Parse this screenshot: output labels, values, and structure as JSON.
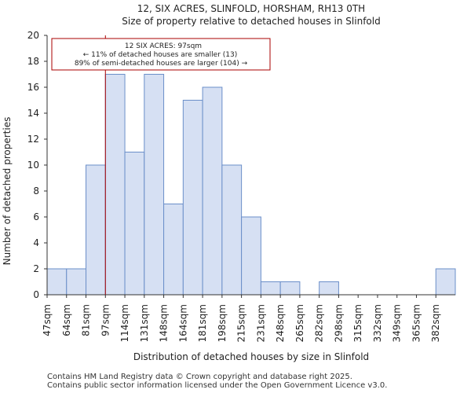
{
  "chart_data": {
    "type": "bar",
    "title_line1": "12, SIX ACRES, SLINFOLD, HORSHAM, RH13 0TH",
    "title_line2": "Size of property relative to detached houses in Slinfold",
    "xlabel": "Distribution of detached houses by size in Slinfold",
    "ylabel": "Number of detached properties",
    "categories": [
      "47sqm",
      "64sqm",
      "81sqm",
      "97sqm",
      "114sqm",
      "131sqm",
      "148sqm",
      "164sqm",
      "181sqm",
      "198sqm",
      "215sqm",
      "231sqm",
      "248sqm",
      "265sqm",
      "282sqm",
      "298sqm",
      "315sqm",
      "332sqm",
      "349sqm",
      "365sqm",
      "382sqm"
    ],
    "values": [
      2,
      2,
      10,
      17,
      11,
      17,
      7,
      15,
      16,
      10,
      6,
      1,
      1,
      0,
      1,
      0,
      0,
      0,
      0,
      0,
      2
    ],
    "ylim": [
      0,
      20
    ],
    "yticks": [
      0,
      2,
      4,
      6,
      8,
      10,
      12,
      14,
      16,
      18,
      20
    ],
    "marker_bin_index": 3,
    "annotation": {
      "line1": "12 SIX ACRES: 97sqm",
      "line2": "← 11% of detached houses are smaller (13)",
      "line3": "89% of semi-detached houses are larger (104) →"
    },
    "colors": {
      "bar_fill": "#d6e0f3",
      "bar_stroke": "#6b8fc9",
      "marker": "#aa0000",
      "annotation_border": "#aa0000"
    }
  },
  "footer": {
    "line1": "Contains HM Land Registry data © Crown copyright and database right 2025.",
    "line2": "Contains public sector information licensed under the Open Government Licence v3.0."
  }
}
